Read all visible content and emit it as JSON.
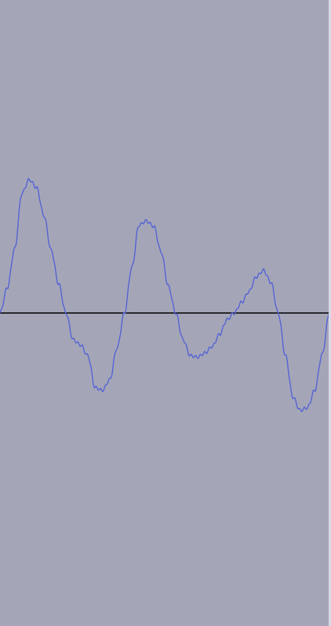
{
  "colors": {
    "background": "#a4a6b8",
    "waveform": "#5663d3",
    "center_line": "#000000",
    "edge": "#d6d8e6"
  },
  "waveform": {
    "amplitude_samples": [
      0.0,
      0.19,
      0.48,
      0.9,
      1.0,
      0.94,
      0.73,
      0.47,
      0.22,
      0.0,
      -0.2,
      -0.24,
      -0.32,
      -0.56,
      -0.58,
      -0.5,
      -0.26,
      0.0,
      0.34,
      0.66,
      0.69,
      0.65,
      0.46,
      0.2,
      0.0,
      -0.2,
      -0.32,
      -0.33,
      -0.3,
      -0.25,
      -0.16,
      -0.05,
      0.0,
      0.08,
      0.16,
      0.27,
      0.32,
      0.23,
      0.0,
      -0.32,
      -0.63,
      -0.73,
      -0.71,
      -0.58,
      -0.31,
      0.0
    ],
    "center_value": 0,
    "range": [
      -1,
      1
    ]
  }
}
